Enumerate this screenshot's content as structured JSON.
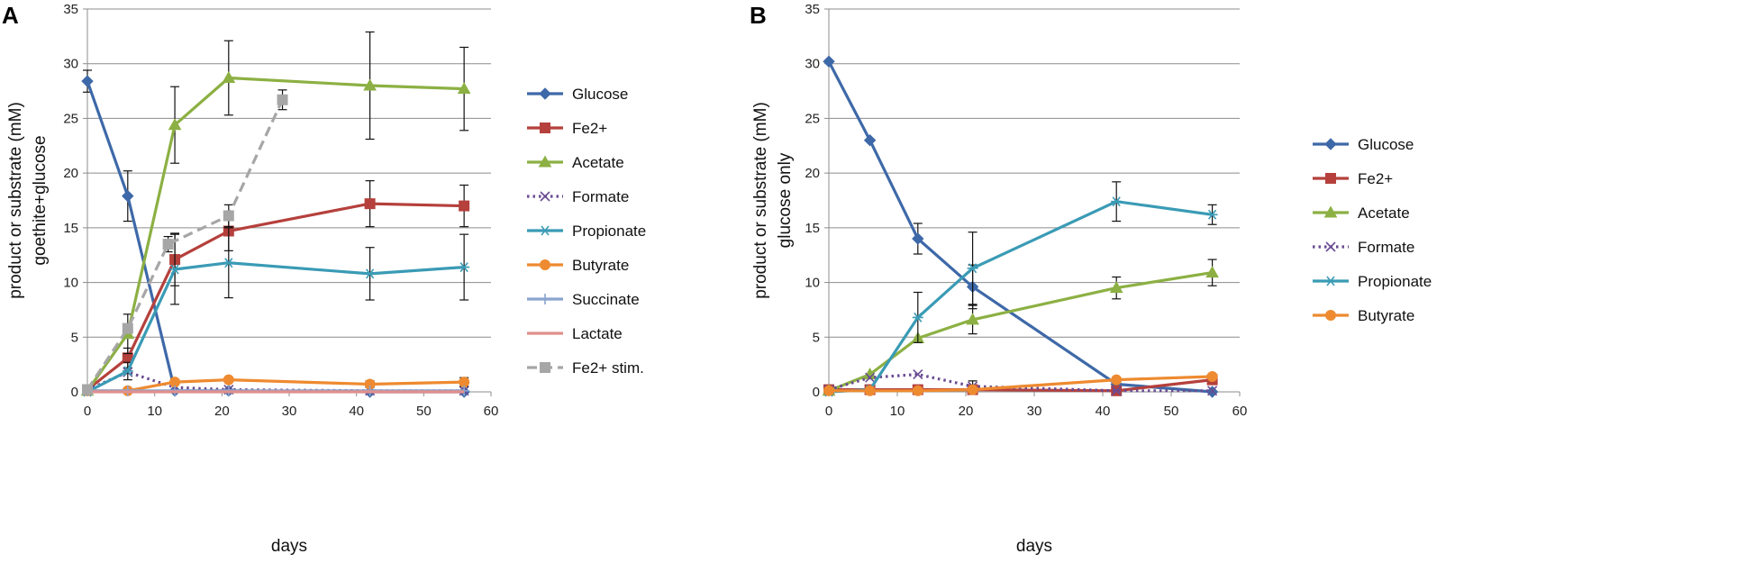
{
  "chart_data": [
    {
      "type": "line",
      "panel_label": "A",
      "xlabel": "days",
      "ylabel": [
        "product  or substrate (mM)",
        "goethite+glucose"
      ],
      "xlim": [
        0,
        60
      ],
      "ylim": [
        0,
        35
      ],
      "xticks": [
        0,
        10,
        20,
        30,
        40,
        50,
        60
      ],
      "yticks": [
        0,
        5,
        10,
        15,
        20,
        25,
        30,
        35
      ],
      "grid": "horizontal",
      "legend_position": "right",
      "series": [
        {
          "name": "Glucose",
          "color": "#3e69a8",
          "marker": "diamond",
          "dash": "solid",
          "points": [
            [
              0,
              28.4
            ],
            [
              6,
              17.9
            ],
            [
              13,
              0.1
            ],
            [
              21,
              0.1
            ],
            [
              42,
              0.0
            ],
            [
              56,
              0.0
            ]
          ],
          "errors": [
            1.0,
            2.3,
            0,
            0,
            0,
            0
          ]
        },
        {
          "name": "Fe2+",
          "color": "#b5403c",
          "marker": "square",
          "dash": "solid",
          "points": [
            [
              0,
              0.2
            ],
            [
              6,
              3.1
            ],
            [
              13,
              12.1
            ],
            [
              21,
              14.7
            ],
            [
              42,
              17.2
            ],
            [
              56,
              17.0
            ]
          ],
          "errors": [
            0,
            0.9,
            2.4,
            1.8,
            2.1,
            1.9
          ]
        },
        {
          "name": "Acetate",
          "color": "#8cb043",
          "marker": "triangle",
          "dash": "solid",
          "points": [
            [
              0,
              0.1
            ],
            [
              6,
              5.3
            ],
            [
              13,
              24.4
            ],
            [
              21,
              28.7
            ],
            [
              42,
              28.0
            ],
            [
              56,
              27.7
            ]
          ],
          "errors": [
            0,
            1.8,
            3.5,
            3.4,
            4.9,
            3.8
          ]
        },
        {
          "name": "Formate",
          "color": "#6a4c93",
          "marker": "x",
          "dash": "dotted",
          "points": [
            [
              0,
              0.2
            ],
            [
              6,
              1.8
            ],
            [
              13,
              0.4
            ],
            [
              21,
              0.2
            ],
            [
              42,
              0.1
            ],
            [
              56,
              0.1
            ]
          ],
          "errors": [
            0,
            0,
            0,
            0,
            0,
            0
          ]
        },
        {
          "name": "Propionate",
          "color": "#3a9bb5",
          "marker": "star",
          "dash": "solid",
          "points": [
            [
              0,
              0.0
            ],
            [
              6,
              1.9
            ],
            [
              13,
              11.2
            ],
            [
              21,
              11.8
            ],
            [
              42,
              10.8
            ],
            [
              56,
              11.4
            ]
          ],
          "errors": [
            0,
            0.8,
            3.2,
            3.2,
            2.4,
            3.0
          ]
        },
        {
          "name": "Butyrate",
          "color": "#ee8a30",
          "marker": "circle",
          "dash": "solid",
          "points": [
            [
              0,
              0.1
            ],
            [
              6,
              0.1
            ],
            [
              13,
              0.9
            ],
            [
              21,
              1.1
            ],
            [
              42,
              0.7
            ],
            [
              56,
              0.9
            ]
          ],
          "errors": [
            0,
            0,
            0,
            0,
            0.3,
            0.4
          ]
        },
        {
          "name": "Succinate",
          "color": "#8aa3cf",
          "marker": "plus",
          "dash": "solid",
          "points": [
            [
              0,
              0.1
            ],
            [
              6,
              0.1
            ],
            [
              13,
              0.1
            ],
            [
              21,
              0.1
            ],
            [
              42,
              0.1
            ],
            [
              56,
              0.1
            ]
          ],
          "errors": [
            0,
            0,
            0,
            0,
            0,
            0
          ]
        },
        {
          "name": "Lactate",
          "color": "#e0908d",
          "marker": "none",
          "dash": "solid",
          "points": [
            [
              0,
              0.0
            ],
            [
              6,
              0.0
            ],
            [
              13,
              0.0
            ],
            [
              21,
              0.0
            ],
            [
              42,
              0.0
            ],
            [
              56,
              0.0
            ]
          ],
          "errors": [
            0,
            0,
            0,
            0,
            0,
            0
          ]
        },
        {
          "name": "Fe2+ stim.",
          "color": "#a6a6a6",
          "marker": "square",
          "dash": "dashed",
          "points": [
            [
              0,
              0.2
            ],
            [
              6,
              5.8
            ],
            [
              12,
              13.5
            ],
            [
              21,
              16.1
            ],
            [
              29,
              26.7
            ]
          ],
          "errors": [
            0,
            0,
            0.7,
            1.0,
            0.9
          ]
        }
      ]
    },
    {
      "type": "line",
      "panel_label": "B",
      "xlabel": "days",
      "ylabel": [
        "product  or substrate (mM)",
        "glucose only"
      ],
      "xlim": [
        0,
        60
      ],
      "ylim": [
        0,
        35
      ],
      "xticks": [
        0,
        10,
        20,
        30,
        40,
        50,
        60
      ],
      "yticks": [
        0,
        5,
        10,
        15,
        20,
        25,
        30,
        35
      ],
      "grid": "horizontal",
      "legend_position": "right",
      "series": [
        {
          "name": "Glucose",
          "color": "#3e69a8",
          "marker": "diamond",
          "dash": "solid",
          "points": [
            [
              0,
              30.2
            ],
            [
              6,
              23.0
            ],
            [
              13,
              14.0
            ],
            [
              21,
              9.6
            ],
            [
              42,
              0.7
            ],
            [
              56,
              0.0
            ]
          ],
          "errors": [
            0,
            0,
            1.4,
            2.0,
            0,
            0
          ]
        },
        {
          "name": "Fe2+",
          "color": "#b5403c",
          "marker": "square",
          "dash": "solid",
          "points": [
            [
              0,
              0.2
            ],
            [
              6,
              0.2
            ],
            [
              13,
              0.2
            ],
            [
              21,
              0.2
            ],
            [
              42,
              0.1
            ],
            [
              56,
              1.1
            ]
          ],
          "errors": [
            0,
            0,
            0,
            0,
            0,
            0
          ]
        },
        {
          "name": "Acetate",
          "color": "#8cb043",
          "marker": "triangle",
          "dash": "solid",
          "points": [
            [
              0,
              0.1
            ],
            [
              6,
              1.6
            ],
            [
              13,
              4.9
            ],
            [
              21,
              6.6
            ],
            [
              42,
              9.5
            ],
            [
              56,
              10.9
            ]
          ],
          "errors": [
            0,
            0,
            0,
            1.3,
            1.0,
            1.2
          ]
        },
        {
          "name": "Formate",
          "color": "#6a4c93",
          "marker": "x",
          "dash": "dotted",
          "points": [
            [
              0,
              0.2
            ],
            [
              6,
              1.3
            ],
            [
              13,
              1.6
            ],
            [
              21,
              0.5
            ],
            [
              42,
              0.1
            ],
            [
              56,
              0.1
            ]
          ],
          "errors": [
            0,
            0,
            0,
            0.5,
            0,
            0
          ]
        },
        {
          "name": "Propionate",
          "color": "#3a9bb5",
          "marker": "star",
          "dash": "solid",
          "points": [
            [
              0,
              0.0
            ],
            [
              6,
              0.2
            ],
            [
              13,
              6.8
            ],
            [
              21,
              11.3
            ],
            [
              42,
              17.4
            ],
            [
              56,
              16.2
            ]
          ],
          "errors": [
            0,
            0,
            2.3,
            3.3,
            1.8,
            0.9
          ]
        },
        {
          "name": "Butyrate",
          "color": "#ee8a30",
          "marker": "circle",
          "dash": "solid",
          "points": [
            [
              0,
              0.1
            ],
            [
              6,
              0.1
            ],
            [
              13,
              0.1
            ],
            [
              21,
              0.2
            ],
            [
              42,
              1.1
            ],
            [
              56,
              1.4
            ]
          ],
          "errors": [
            0,
            0,
            0,
            0,
            0,
            0
          ]
        }
      ]
    }
  ]
}
